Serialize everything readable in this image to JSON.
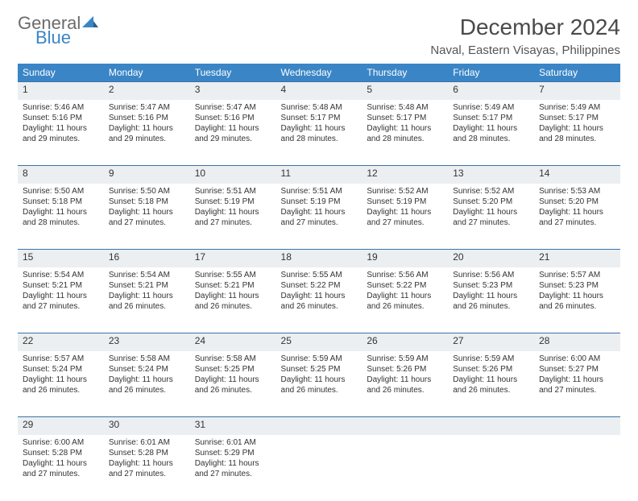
{
  "brand": {
    "part1": "General",
    "part2": "Blue"
  },
  "title": "December 2024",
  "location": "Naval, Eastern Visayas, Philippines",
  "colors": {
    "header_bg": "#3a85c6",
    "header_text": "#ffffff",
    "row_bg": "#eceff1",
    "row_border": "#3a73a8",
    "logo_gray": "#6b6b6b",
    "logo_blue": "#3a85c6"
  },
  "day_headers": [
    "Sunday",
    "Monday",
    "Tuesday",
    "Wednesday",
    "Thursday",
    "Friday",
    "Saturday"
  ],
  "weeks": [
    [
      {
        "n": "1",
        "sr": "5:46 AM",
        "ss": "5:16 PM",
        "dl": "11 hours and 29 minutes."
      },
      {
        "n": "2",
        "sr": "5:47 AM",
        "ss": "5:16 PM",
        "dl": "11 hours and 29 minutes."
      },
      {
        "n": "3",
        "sr": "5:47 AM",
        "ss": "5:16 PM",
        "dl": "11 hours and 29 minutes."
      },
      {
        "n": "4",
        "sr": "5:48 AM",
        "ss": "5:17 PM",
        "dl": "11 hours and 28 minutes."
      },
      {
        "n": "5",
        "sr": "5:48 AM",
        "ss": "5:17 PM",
        "dl": "11 hours and 28 minutes."
      },
      {
        "n": "6",
        "sr": "5:49 AM",
        "ss": "5:17 PM",
        "dl": "11 hours and 28 minutes."
      },
      {
        "n": "7",
        "sr": "5:49 AM",
        "ss": "5:17 PM",
        "dl": "11 hours and 28 minutes."
      }
    ],
    [
      {
        "n": "8",
        "sr": "5:50 AM",
        "ss": "5:18 PM",
        "dl": "11 hours and 28 minutes."
      },
      {
        "n": "9",
        "sr": "5:50 AM",
        "ss": "5:18 PM",
        "dl": "11 hours and 27 minutes."
      },
      {
        "n": "10",
        "sr": "5:51 AM",
        "ss": "5:19 PM",
        "dl": "11 hours and 27 minutes."
      },
      {
        "n": "11",
        "sr": "5:51 AM",
        "ss": "5:19 PM",
        "dl": "11 hours and 27 minutes."
      },
      {
        "n": "12",
        "sr": "5:52 AM",
        "ss": "5:19 PM",
        "dl": "11 hours and 27 minutes."
      },
      {
        "n": "13",
        "sr": "5:52 AM",
        "ss": "5:20 PM",
        "dl": "11 hours and 27 minutes."
      },
      {
        "n": "14",
        "sr": "5:53 AM",
        "ss": "5:20 PM",
        "dl": "11 hours and 27 minutes."
      }
    ],
    [
      {
        "n": "15",
        "sr": "5:54 AM",
        "ss": "5:21 PM",
        "dl": "11 hours and 27 minutes."
      },
      {
        "n": "16",
        "sr": "5:54 AM",
        "ss": "5:21 PM",
        "dl": "11 hours and 26 minutes."
      },
      {
        "n": "17",
        "sr": "5:55 AM",
        "ss": "5:21 PM",
        "dl": "11 hours and 26 minutes."
      },
      {
        "n": "18",
        "sr": "5:55 AM",
        "ss": "5:22 PM",
        "dl": "11 hours and 26 minutes."
      },
      {
        "n": "19",
        "sr": "5:56 AM",
        "ss": "5:22 PM",
        "dl": "11 hours and 26 minutes."
      },
      {
        "n": "20",
        "sr": "5:56 AM",
        "ss": "5:23 PM",
        "dl": "11 hours and 26 minutes."
      },
      {
        "n": "21",
        "sr": "5:57 AM",
        "ss": "5:23 PM",
        "dl": "11 hours and 26 minutes."
      }
    ],
    [
      {
        "n": "22",
        "sr": "5:57 AM",
        "ss": "5:24 PM",
        "dl": "11 hours and 26 minutes."
      },
      {
        "n": "23",
        "sr": "5:58 AM",
        "ss": "5:24 PM",
        "dl": "11 hours and 26 minutes."
      },
      {
        "n": "24",
        "sr": "5:58 AM",
        "ss": "5:25 PM",
        "dl": "11 hours and 26 minutes."
      },
      {
        "n": "25",
        "sr": "5:59 AM",
        "ss": "5:25 PM",
        "dl": "11 hours and 26 minutes."
      },
      {
        "n": "26",
        "sr": "5:59 AM",
        "ss": "5:26 PM",
        "dl": "11 hours and 26 minutes."
      },
      {
        "n": "27",
        "sr": "5:59 AM",
        "ss": "5:26 PM",
        "dl": "11 hours and 26 minutes."
      },
      {
        "n": "28",
        "sr": "6:00 AM",
        "ss": "5:27 PM",
        "dl": "11 hours and 27 minutes."
      }
    ],
    [
      {
        "n": "29",
        "sr": "6:00 AM",
        "ss": "5:28 PM",
        "dl": "11 hours and 27 minutes."
      },
      {
        "n": "30",
        "sr": "6:01 AM",
        "ss": "5:28 PM",
        "dl": "11 hours and 27 minutes."
      },
      {
        "n": "31",
        "sr": "6:01 AM",
        "ss": "5:29 PM",
        "dl": "11 hours and 27 minutes."
      },
      null,
      null,
      null,
      null
    ]
  ],
  "labels": {
    "sunrise": "Sunrise:",
    "sunset": "Sunset:",
    "daylight": "Daylight:"
  }
}
